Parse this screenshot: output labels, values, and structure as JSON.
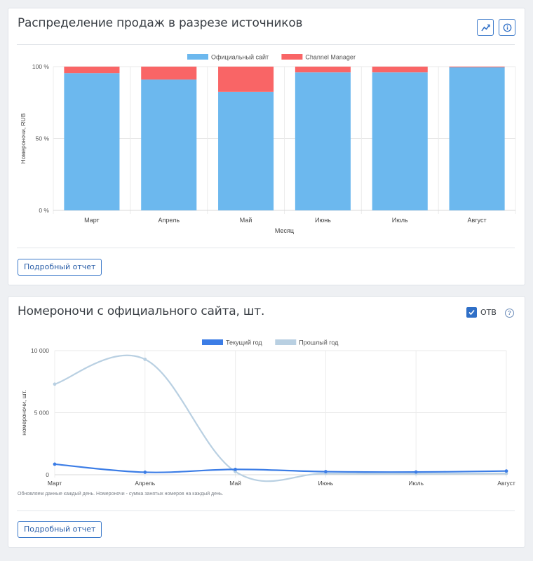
{
  "card1": {
    "title": "Распределение продаж в разрезе источников",
    "report_button": "Подробный отчет",
    "icons": [
      "chart-line-icon",
      "info-icon"
    ]
  },
  "card2": {
    "title": "Номероночи с официального сайта, шт.",
    "otb_label": "ОТВ",
    "otb_checked": true,
    "help_symbol": "?",
    "note": "Обновляем данные каждый день. Номероночи - сумма занятых номеров на каждый день.",
    "report_button": "Подробный отчет"
  },
  "chart_data": [
    {
      "type": "bar",
      "stacked": true,
      "percent": true,
      "categories": [
        "Март",
        "Апрель",
        "Май",
        "Июнь",
        "Июль",
        "Август"
      ],
      "series": [
        {
          "name": "Официальный сайт",
          "color": "#6cb8ee",
          "values": [
            95.5,
            91,
            82.5,
            96,
            96,
            99.5
          ]
        },
        {
          "name": "Channel Manager",
          "color": "#f96566",
          "values": [
            4.5,
            9,
            17.5,
            4,
            4,
            0.5
          ]
        }
      ],
      "xlabel": "Месяц",
      "ylabel": "Номероночи, RUB",
      "yticks": [
        "0 %",
        "50 %",
        "100 %"
      ],
      "ylim": [
        0,
        100
      ],
      "legend": "top",
      "grid": true
    },
    {
      "type": "line",
      "categories": [
        "Март",
        "Апрель",
        "Май",
        "Июнь",
        "Июль",
        "Август"
      ],
      "series": [
        {
          "name": "Текущий год",
          "color": "#3c7de6",
          "values": [
            850,
            200,
            430,
            250,
            220,
            300
          ]
        },
        {
          "name": "Прошлый год",
          "color": "#b9d0e2",
          "values": [
            7300,
            9300,
            250,
            100,
            80,
            100
          ]
        }
      ],
      "ylabel": "номероночи, шт.",
      "yticks": [
        "0",
        "5 000",
        "10 000"
      ],
      "ylim": [
        0,
        10000
      ],
      "legend": "top",
      "grid": true
    }
  ]
}
